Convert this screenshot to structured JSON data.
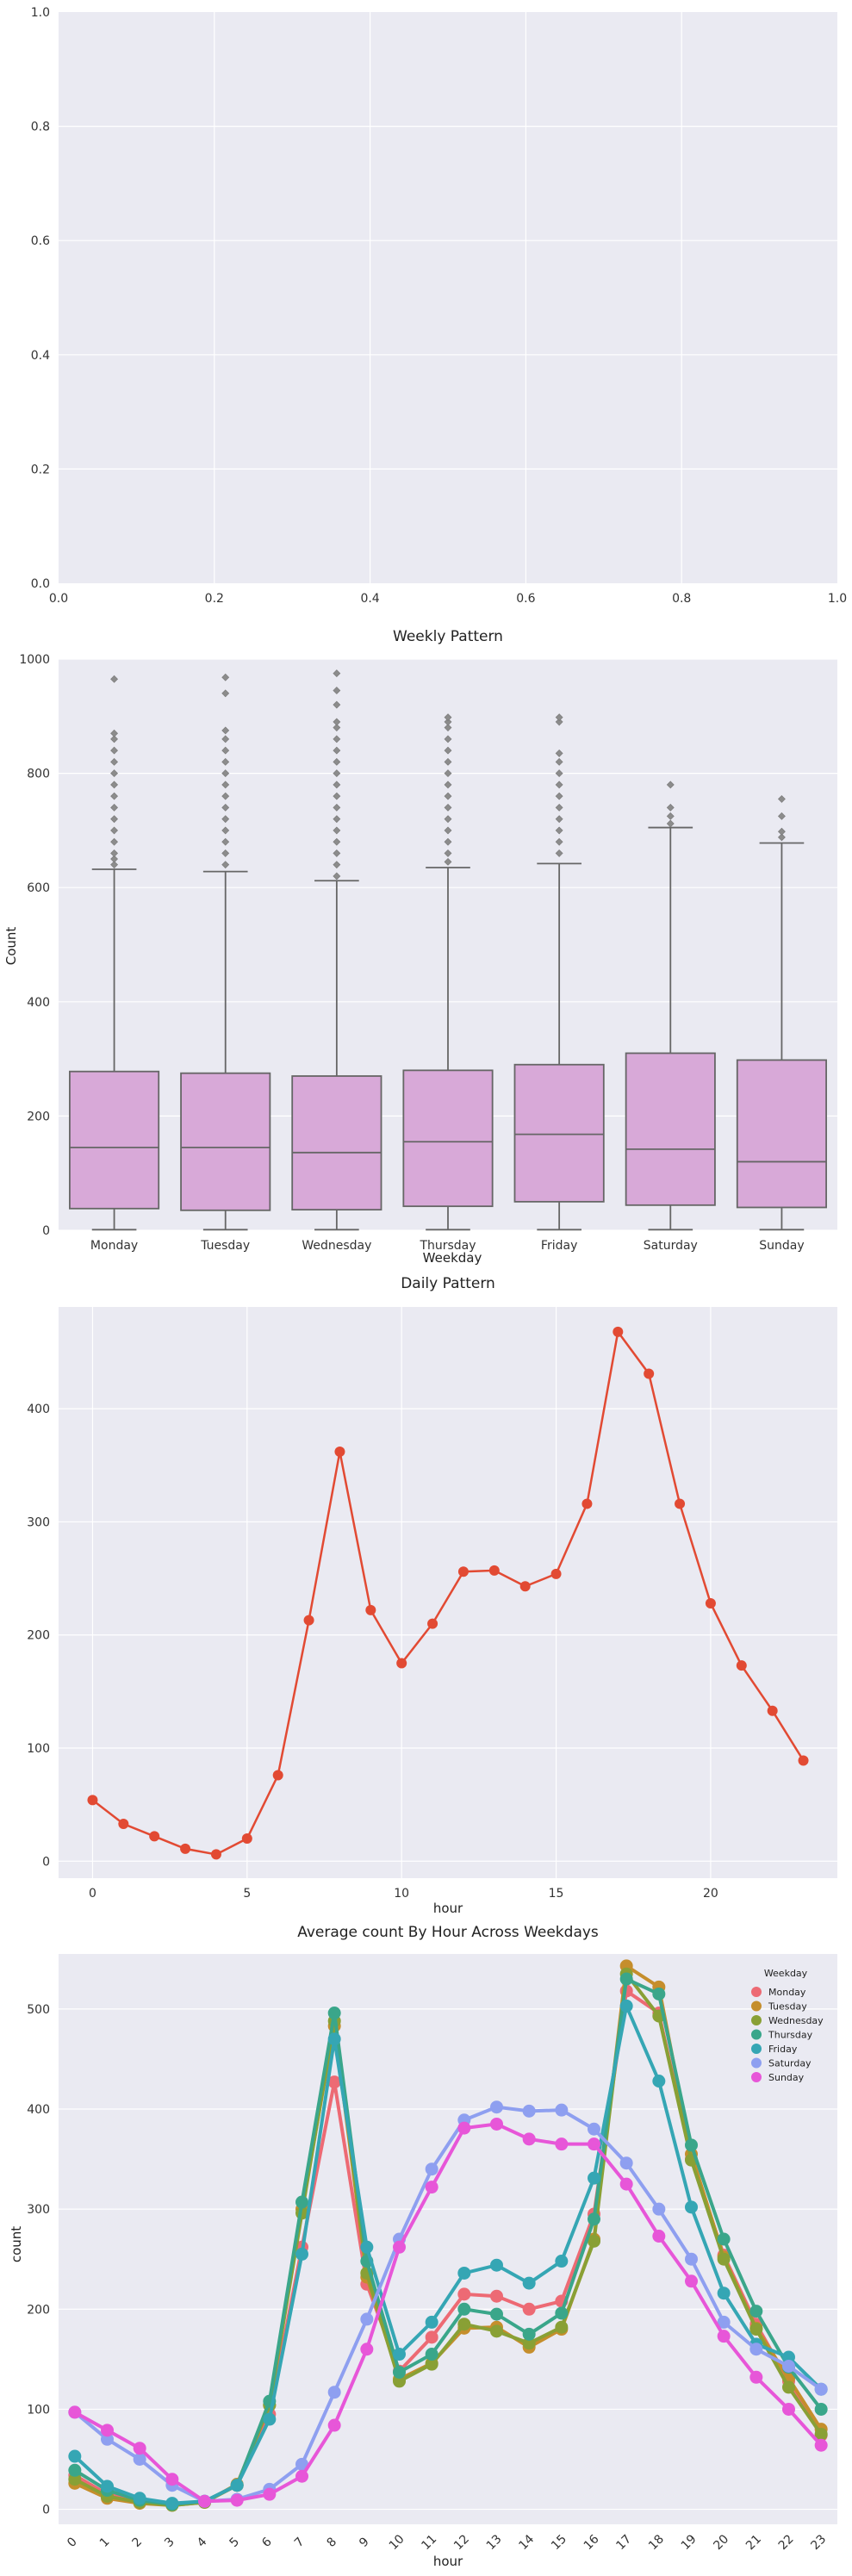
{
  "chart_data": [
    {
      "type": "scatter",
      "title": "",
      "xlabel": "",
      "ylabel": "",
      "xlim": [
        0,
        1
      ],
      "ylim": [
        0,
        1
      ],
      "x_ticks": [
        "0.0",
        "0.2",
        "0.4",
        "0.6",
        "0.8",
        "1.0"
      ],
      "y_ticks": [
        "0.0",
        "0.2",
        "0.4",
        "0.6",
        "0.8",
        "1.0"
      ],
      "grid": true,
      "series": []
    },
    {
      "type": "box",
      "title": "Weekly Pattern",
      "xlabel": "Weekday",
      "ylabel": "Count",
      "ylim": [
        0,
        1000
      ],
      "y_ticks": [
        "0",
        "200",
        "400",
        "600",
        "800",
        "1000"
      ],
      "color": "#d8a9d8",
      "categories": [
        "Monday",
        "Tuesday",
        "Wednesday",
        "Thursday",
        "Friday",
        "Saturday",
        "Sunday"
      ],
      "boxes": [
        {
          "whisker_low": 1,
          "q1": 38,
          "median": 145,
          "q3": 278,
          "whisker_high": 632,
          "outliers": [
            640,
            650,
            660,
            680,
            700,
            720,
            740,
            760,
            780,
            800,
            820,
            840,
            860,
            870,
            965
          ]
        },
        {
          "whisker_low": 1,
          "q1": 35,
          "median": 145,
          "q3": 275,
          "whisker_high": 628,
          "outliers": [
            640,
            660,
            680,
            700,
            720,
            740,
            760,
            780,
            800,
            820,
            840,
            860,
            875,
            940,
            968
          ]
        },
        {
          "whisker_low": 1,
          "q1": 36,
          "median": 136,
          "q3": 270,
          "whisker_high": 612,
          "outliers": [
            620,
            640,
            660,
            680,
            700,
            720,
            740,
            760,
            780,
            800,
            820,
            840,
            860,
            880,
            890,
            920,
            945,
            975
          ]
        },
        {
          "whisker_low": 1,
          "q1": 42,
          "median": 155,
          "q3": 280,
          "whisker_high": 635,
          "outliers": [
            645,
            660,
            680,
            700,
            720,
            740,
            760,
            780,
            800,
            820,
            840,
            860,
            880,
            890,
            898
          ]
        },
        {
          "whisker_low": 1,
          "q1": 50,
          "median": 168,
          "q3": 290,
          "whisker_high": 642,
          "outliers": [
            660,
            680,
            700,
            720,
            740,
            760,
            780,
            800,
            820,
            835,
            890,
            898
          ]
        },
        {
          "whisker_low": 1,
          "q1": 44,
          "median": 142,
          "q3": 310,
          "whisker_high": 705,
          "outliers": [
            712,
            725,
            740,
            780
          ]
        },
        {
          "whisker_low": 1,
          "q1": 40,
          "median": 120,
          "q3": 298,
          "whisker_high": 678,
          "outliers": [
            688,
            698,
            725,
            755
          ]
        }
      ]
    },
    {
      "type": "line",
      "title": "Daily Pattern",
      "xlabel": "hour",
      "ylabel": "",
      "xlim": [
        -1.1,
        24.1
      ],
      "ylim": [
        -15,
        490
      ],
      "x_ticks": [
        "0",
        "5",
        "10",
        "15",
        "20"
      ],
      "y_ticks": [
        "0",
        "100",
        "200",
        "300",
        "400"
      ],
      "color": "#e24a33",
      "x": [
        0,
        1,
        2,
        3,
        4,
        5,
        6,
        7,
        8,
        9,
        10,
        11,
        12,
        13,
        14,
        15,
        16,
        17,
        18,
        19,
        20,
        21,
        22,
        23
      ],
      "values": [
        54,
        33,
        22,
        11,
        6,
        20,
        76,
        213,
        362,
        222,
        175,
        210,
        256,
        257,
        243,
        254,
        316,
        468,
        431,
        316,
        228,
        173,
        133,
        89
      ]
    },
    {
      "type": "line",
      "title": "Average count By Hour Across Weekdays",
      "xlabel": "hour",
      "ylabel": "count",
      "ylim": [
        -15,
        555
      ],
      "y_ticks": [
        "0",
        "100",
        "200",
        "300",
        "400",
        "500"
      ],
      "categories": [
        "0",
        "1",
        "2",
        "3",
        "4",
        "5",
        "6",
        "7",
        "8",
        "9",
        "10",
        "11",
        "12",
        "13",
        "14",
        "15",
        "16",
        "17",
        "18",
        "19",
        "20",
        "21",
        "22",
        "23"
      ],
      "legend_title": "Weekday",
      "legend_position": "top-right",
      "series": [
        {
          "name": "Monday",
          "color": "#ed6a74",
          "values": [
            34,
            15,
            8,
            5,
            7,
            24,
            95,
            262,
            427,
            225,
            138,
            172,
            215,
            213,
            200,
            208,
            295,
            518,
            496,
            350,
            254,
            185,
            128,
            74
          ]
        },
        {
          "name": "Tuesday",
          "color": "#c58e2c",
          "values": [
            26,
            11,
            6,
            4,
            7,
            25,
            104,
            300,
            483,
            232,
            130,
            146,
            181,
            182,
            162,
            180,
            270,
            543,
            522,
            355,
            252,
            181,
            131,
            80
          ]
        },
        {
          "name": "Wednesday",
          "color": "#89a035",
          "values": [
            30,
            13,
            7,
            4,
            7,
            24,
            104,
            296,
            488,
            236,
            128,
            145,
            185,
            178,
            166,
            182,
            268,
            535,
            493,
            349,
            250,
            180,
            122,
            75
          ]
        },
        {
          "name": "Thursday",
          "color": "#3aa68a",
          "values": [
            39,
            19,
            9,
            5,
            8,
            24,
            108,
            307,
            496,
            248,
            137,
            155,
            200,
            195,
            175,
            196,
            290,
            530,
            515,
            364,
            270,
            198,
            142,
            100
          ]
        },
        {
          "name": "Friday",
          "color": "#35a6b4",
          "values": [
            53,
            23,
            11,
            6,
            8,
            24,
            90,
            255,
            470,
            262,
            155,
            187,
            236,
            244,
            226,
            248,
            331,
            503,
            428,
            302,
            216,
            165,
            152,
            120
          ]
        },
        {
          "name": "Saturday",
          "color": "#8e9ff0",
          "values": [
            97,
            70,
            50,
            24,
            8,
            10,
            20,
            45,
            117,
            190,
            270,
            340,
            389,
            402,
            398,
            399,
            380,
            346,
            300,
            250,
            187,
            160,
            143,
            120
          ]
        },
        {
          "name": "Sunday",
          "color": "#e756d8",
          "values": [
            97,
            79,
            61,
            30,
            8,
            9,
            15,
            33,
            84,
            160,
            262,
            322,
            381,
            385,
            370,
            365,
            365,
            325,
            273,
            228,
            173,
            132,
            100,
            64
          ]
        }
      ]
    }
  ]
}
